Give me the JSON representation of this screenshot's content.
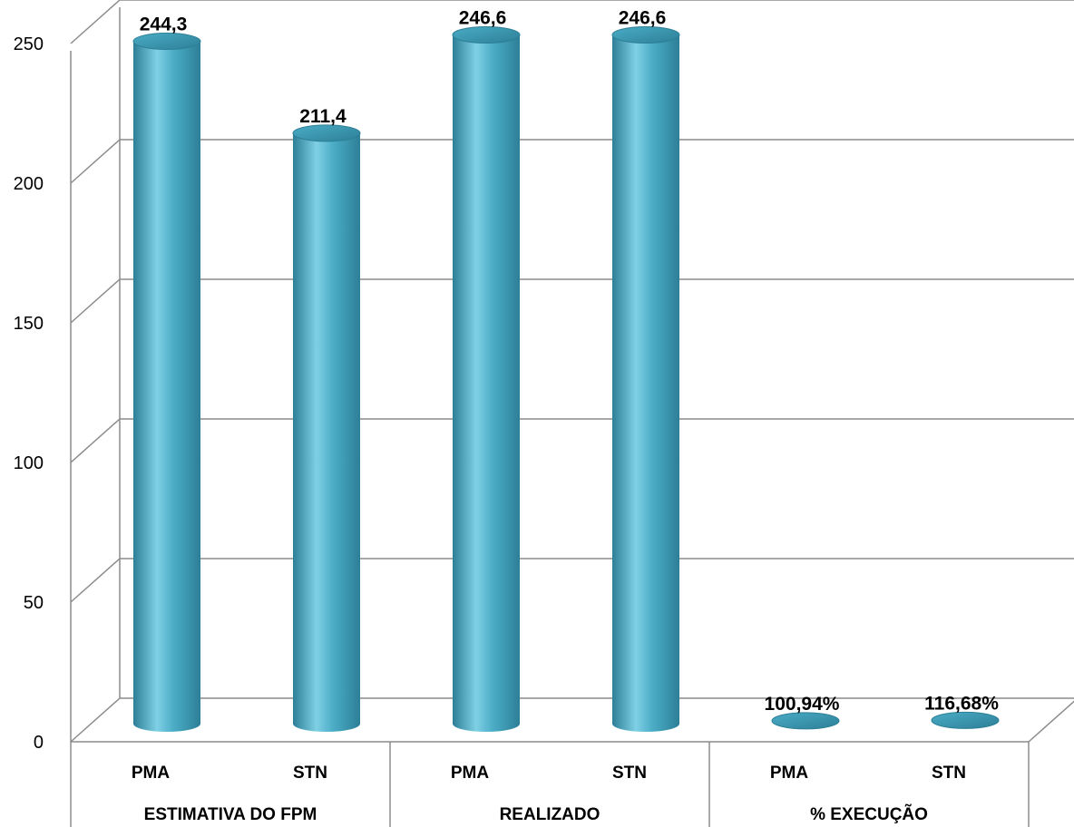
{
  "chart_data": {
    "type": "bar",
    "style": "3d-cylinder",
    "groups": [
      {
        "label": "ESTIMATIVA DO FPM",
        "items": [
          {
            "label": "PMA",
            "value": 244.3,
            "display": "244,3"
          },
          {
            "label": "STN",
            "value": 211.4,
            "display": "211,4"
          }
        ]
      },
      {
        "label": "REALIZADO",
        "items": [
          {
            "label": "PMA",
            "value": 246.6,
            "display": "246,6"
          },
          {
            "label": "STN",
            "value": 246.6,
            "display": "246,6"
          }
        ]
      },
      {
        "label": "% EXECUÇÃO",
        "items": [
          {
            "label": "PMA",
            "value": 1.0094,
            "display": "100,94%"
          },
          {
            "label": "STN",
            "value": 1.1668,
            "display": "116,68%"
          }
        ]
      }
    ],
    "yticks": [
      0,
      50,
      100,
      150,
      200,
      250
    ],
    "ylim": [
      0,
      250
    ],
    "grid": true,
    "legend": "none",
    "colors": {
      "bar": "#4bacc6",
      "bar_dark": "#2c7f96",
      "bar_light": "#7fd0e4",
      "grid": "#8c8c8c"
    }
  }
}
